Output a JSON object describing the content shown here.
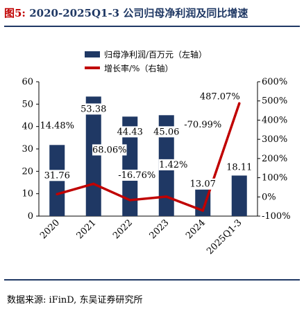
{
  "figure": {
    "title_prefix": "图5:",
    "title_text": "2020-2025Q1-3 公司归母净利润及同比增速",
    "source": "数据来源: iFinD, 东吴证券研究所"
  },
  "chart_data": {
    "type": "bar",
    "categories": [
      "2020",
      "2021",
      "2022",
      "2023",
      "2024",
      "2025Q1-3"
    ],
    "series": [
      {
        "name": "归母净利润/百万元（左轴）",
        "type": "bar",
        "axis": "left",
        "color": "#1f3864",
        "values": [
          31.76,
          53.38,
          44.43,
          45.06,
          13.07,
          18.11
        ],
        "value_labels": [
          "31.76",
          "53.38",
          "44.43",
          "45.06",
          "13.07",
          "18.11"
        ]
      },
      {
        "name": "增长率/%（右轴）",
        "type": "line",
        "axis": "right",
        "color": "#c00000",
        "values": [
          14.48,
          68.06,
          -16.76,
          1.42,
          -70.99,
          487.07
        ],
        "value_labels": [
          "14.48%",
          "68.06%",
          "-16.76%",
          "1.42%",
          "-70.99%",
          "487.07%"
        ]
      }
    ],
    "y_left": {
      "min": 0,
      "max": 60,
      "step": 10,
      "ticks": [
        "0",
        "10",
        "20",
        "30",
        "40",
        "50",
        "60"
      ]
    },
    "y_right": {
      "min": -100,
      "max": 600,
      "step": 100,
      "ticks": [
        "-100%",
        "0%",
        "100%",
        "200%",
        "300%",
        "400%",
        "500%",
        "600%"
      ]
    },
    "legend_position": "top-center",
    "grid": false
  }
}
